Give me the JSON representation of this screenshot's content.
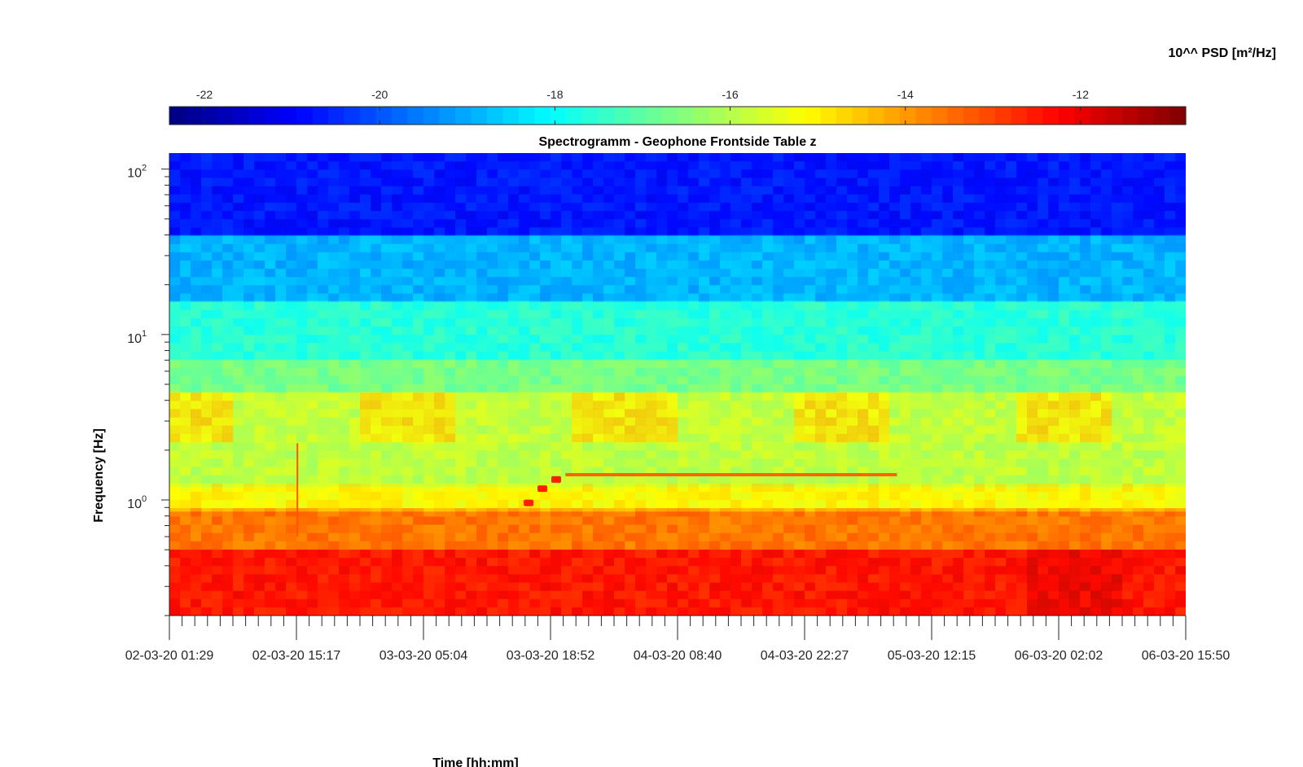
{
  "chart_data": {
    "type": "heatmap",
    "title": "Spectrogramm - Geophone Frontside Table z",
    "xlabel": "Time [hh:mm]",
    "ylabel": "Frequency [Hz]",
    "colorbar_label": "10^^ PSD [m²/Hz]",
    "colormap": "jet",
    "colorbar_range": [
      -22.4,
      -10.8
    ],
    "colorbar_ticks": [
      "-22",
      "-20",
      "-18",
      "-16",
      "-14",
      "-12"
    ],
    "colorbar_tick_values": [
      -22,
      -20,
      -18,
      -16,
      -14,
      -12
    ],
    "x_tick_labels": [
      "02-03-20 01:29",
      "02-03-20 15:17",
      "03-03-20 05:04",
      "03-03-20 18:52",
      "04-03-20 08:40",
      "04-03-20 22:27",
      "05-03-20 12:15",
      "06-03-20 02:02",
      "06-03-20 15:50"
    ],
    "x_range_hours": [
      0,
      110.35
    ],
    "y_scale": "log",
    "y_range_hz": [
      0.2,
      125
    ],
    "y_ticks": [
      {
        "base": "10",
        "exp": "0",
        "value": 1
      },
      {
        "base": "10",
        "exp": "1",
        "value": 10
      },
      {
        "base": "10",
        "exp": "2",
        "value": 100
      }
    ],
    "bands": [
      {
        "f_from": 40,
        "f_to": 125,
        "level": -20.7
      },
      {
        "f_from": 16,
        "f_to": 40,
        "level": -18.9
      },
      {
        "f_from": 7,
        "f_to": 16,
        "level": -17.6
      },
      {
        "f_from": 4.5,
        "f_to": 7,
        "level": -16.7
      },
      {
        "f_from": 2.2,
        "f_to": 4.5,
        "level": -15.5
      },
      {
        "f_from": 1.2,
        "f_to": 2.2,
        "level": -15.9
      },
      {
        "f_from": 0.85,
        "f_to": 1.2,
        "level": -15.1
      },
      {
        "f_from": 0.5,
        "f_to": 0.85,
        "level": -13.6
      },
      {
        "f_from": 0.2,
        "f_to": 0.5,
        "level": -12.5
      }
    ],
    "features": [
      {
        "kind": "persistent_line",
        "f_hz": 1.42,
        "t_from_h": 43,
        "t_to_h": 79,
        "level": -13.4
      },
      {
        "kind": "spike",
        "f_hz": 1.33,
        "t_h": 42,
        "level": -12.6
      },
      {
        "kind": "spike",
        "f_hz": 1.17,
        "t_h": 40.5,
        "level": -12.6
      },
      {
        "kind": "spike",
        "f_hz": 0.96,
        "t_h": 39,
        "level": -12.6
      },
      {
        "kind": "vertical_event",
        "t_h": 13.9,
        "f_from": 0.6,
        "f_to": 2.2,
        "level": -13.2
      }
    ]
  }
}
